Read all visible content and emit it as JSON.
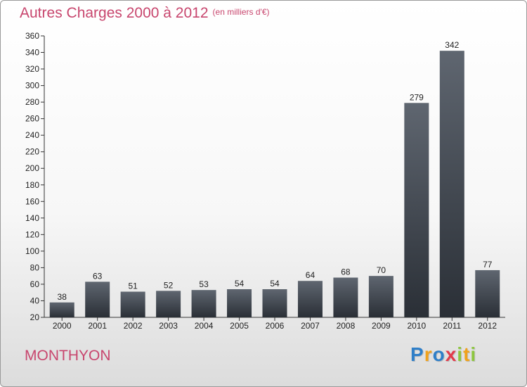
{
  "title": "Autres Charges 2000 à 2012",
  "subtitle": "(en milliers d'€)",
  "city": "MONTHYON",
  "logo": {
    "letters": [
      {
        "ch": "P",
        "color": "#2f7fc8"
      },
      {
        "ch": "r",
        "color": "#f0a21c"
      },
      {
        "ch": "o",
        "color": "#2f7fc8"
      },
      {
        "ch": "x",
        "color": "#e23b4b"
      },
      {
        "ch": "i",
        "color": "#8dc63f"
      },
      {
        "ch": "t",
        "color": "#f0a21c"
      },
      {
        "ch": "i",
        "color": "#8dc63f"
      }
    ]
  },
  "chart_data": {
    "type": "bar",
    "categories": [
      "2000",
      "2001",
      "2002",
      "2003",
      "2004",
      "2005",
      "2006",
      "2007",
      "2008",
      "2009",
      "2010",
      "2011",
      "2012"
    ],
    "values": [
      38,
      63,
      51,
      52,
      53,
      54,
      54,
      64,
      68,
      70,
      279,
      342,
      77
    ],
    "ylim": [
      20,
      360
    ],
    "yticks": [
      20,
      40,
      60,
      80,
      100,
      120,
      140,
      160,
      180,
      200,
      220,
      240,
      260,
      280,
      300,
      320,
      340,
      360
    ],
    "grid": false,
    "legend": "none",
    "colors": {
      "bar_top": "#5f6670",
      "bar_bottom": "#2a2f36",
      "axis": "#333333",
      "text": "#222222"
    }
  }
}
